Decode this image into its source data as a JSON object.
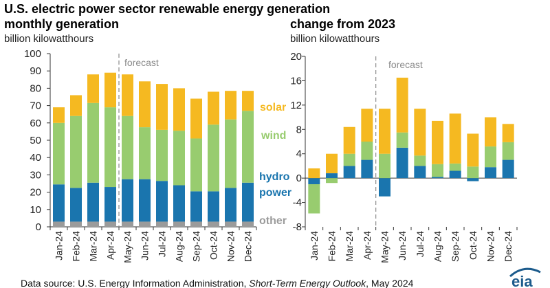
{
  "colors": {
    "solar": "#f5b921",
    "wind": "#98cc6f",
    "hydro": "#1a75ae",
    "other": "#9b9b9b",
    "axis": "#333333",
    "forecast_line": "#8a8a8a"
  },
  "legend": {
    "solar": "solar",
    "wind": "wind",
    "hydro_line1": "hydro",
    "hydro_line2": "power",
    "other": "other"
  },
  "source": {
    "prefix": "Data source: U.S. Energy Information Administration, ",
    "title": "Short-Term Energy Outlook",
    "suffix": ", May 2024"
  },
  "logo": {
    "text": "eia"
  },
  "chart_data": [
    {
      "type": "bar",
      "stacked": true,
      "title_line1": "U.S. electric power sector renewable energy generation",
      "title_line2": "monthly generation",
      "subtitle": "billion kilowatthours",
      "forecast_label": "forecast",
      "forecast_after": "Apr-24",
      "categories": [
        "Jan-24",
        "Feb-24",
        "Mar-24",
        "Apr-24",
        "May-24",
        "Jun-24",
        "Jul-24",
        "Aug-24",
        "Sep-24",
        "Oct-24",
        "Nov-24",
        "Dec-24"
      ],
      "ylim": [
        0,
        100
      ],
      "yticks": [
        "0",
        "10",
        "20",
        "30",
        "40",
        "50",
        "60",
        "70",
        "80",
        "90",
        "100"
      ],
      "series": [
        {
          "name": "other",
          "values": [
            3,
            3,
            3,
            3,
            3,
            3,
            3,
            3,
            3,
            3,
            3,
            3
          ]
        },
        {
          "name": "hydro power",
          "values": [
            21.5,
            19.5,
            22.5,
            20,
            24.5,
            24.5,
            23.5,
            21,
            17.5,
            17.5,
            19.5,
            22.5
          ]
        },
        {
          "name": "wind",
          "values": [
            35.5,
            41.5,
            46,
            46,
            36.5,
            30,
            29.5,
            31.5,
            30.5,
            38.5,
            39.5,
            41.5
          ]
        },
        {
          "name": "solar",
          "values": [
            9,
            12,
            16.5,
            20,
            24,
            26.5,
            26.5,
            24.5,
            23,
            19,
            16.5,
            11.5
          ]
        }
      ]
    },
    {
      "type": "bar",
      "stacked": true,
      "title": "change from 2023",
      "subtitle": "billion kilowatthours",
      "forecast_label": "forecast",
      "forecast_after": "Apr-24",
      "categories": [
        "Jan-24",
        "Feb-24",
        "Mar-24",
        "Apr-24",
        "May-24",
        "Jun-24",
        "Jul-24",
        "Aug-24",
        "Sep-24",
        "Oct-24",
        "Nov-24",
        "Dec-24"
      ],
      "ylim": [
        -8,
        20
      ],
      "yticks": [
        "-8",
        "-4",
        "0",
        "4",
        "8",
        "12",
        "16",
        "20"
      ],
      "series": [
        {
          "name": "other",
          "values": [
            0,
            0,
            0,
            0,
            0,
            0,
            0,
            0,
            0,
            0,
            0,
            0
          ]
        },
        {
          "name": "hydro power",
          "values": [
            -1,
            0.8,
            2,
            3,
            -3,
            5,
            2,
            0.2,
            1.2,
            -0.5,
            1.8,
            3
          ]
        },
        {
          "name": "wind",
          "values": [
            -4.8,
            -0.8,
            2,
            3,
            4,
            2.5,
            1.7,
            2.1,
            1.2,
            1.9,
            3.4,
            2.9
          ]
        },
        {
          "name": "solar",
          "values": [
            1.6,
            3.2,
            4.4,
            5.4,
            7.4,
            9,
            7.7,
            7.1,
            8.2,
            5.4,
            4.8,
            3
          ]
        }
      ]
    }
  ]
}
